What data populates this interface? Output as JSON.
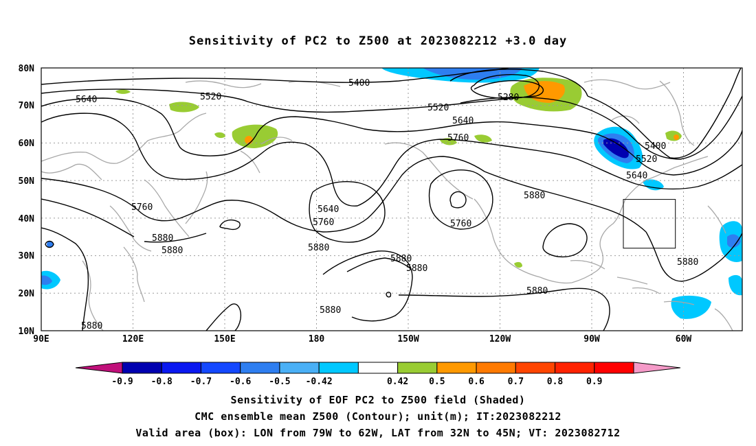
{
  "title": "Sensitivity of PC2 to Z500 at 2023082212 +3.0 day",
  "map": {
    "lat_labels": [
      "80N",
      "70N",
      "60N",
      "50N",
      "40N",
      "30N",
      "20N",
      "10N"
    ],
    "lon_labels": [
      "90E",
      "120E",
      "150E",
      "180",
      "150W",
      "120W",
      "90W",
      "60W"
    ],
    "contour_labels": [
      "5400",
      "5520",
      "5640",
      "5520",
      "5280",
      "5640",
      "5760",
      "5400",
      "5520",
      "5640",
      "5760",
      "5640",
      "5760",
      "5880",
      "5760",
      "5880",
      "5880",
      "5880",
      "5880",
      "5880",
      "5880",
      "5880",
      "5880",
      "5880"
    ],
    "valid_box": {
      "lon_from": "79W",
      "lon_to": "62W",
      "lat_from": "32N",
      "lat_to": "45N"
    }
  },
  "colorbar": {
    "labels": [
      "-0.9",
      "-0.8",
      "-0.7",
      "-0.6",
      "-0.5",
      "-0.42",
      "0.42",
      "0.5",
      "0.6",
      "0.7",
      "0.8",
      "0.9"
    ],
    "colors": [
      "#c0107a",
      "#0000b0",
      "#0a18f0",
      "#1448ff",
      "#2e7ef0",
      "#4ab0f6",
      "#00c8ff",
      "#ffffff",
      "#99cc33",
      "#ff9900",
      "#ff7a00",
      "#ff4500",
      "#ff2200",
      "#ff0000",
      "#f59ac8"
    ]
  },
  "captions": {
    "line1": "Sensitivity of EOF PC2 to Z500 field (Shaded)",
    "line2": "CMC ensemble mean Z500 (Contour); unit(m); IT:2023082212",
    "line3": "Valid area (box): LON from 79W to 62W, LAT from 32N to 45N; VT: 2023082712"
  }
}
